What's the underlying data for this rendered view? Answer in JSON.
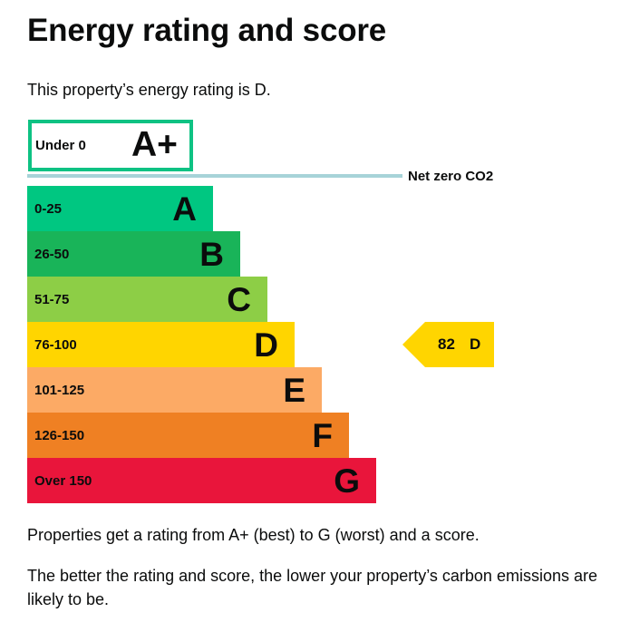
{
  "page": {
    "title": "Energy rating and score",
    "intro": "This property’s energy rating is D.",
    "note1": "Properties get a rating from A+ (best) to G (worst) and a score.",
    "note2": "The better the rating and score, the lower your property’s carbon emissions are likely to be."
  },
  "rating_chart": {
    "top_band": {
      "range": "Under 0",
      "letter": "A+",
      "border_color": "#0ec283"
    },
    "net_zero": {
      "label": "Net zero CO2",
      "line_color": "#a7d3d8"
    },
    "bands": [
      {
        "range": "0-25",
        "letter": "A",
        "color": "#00c781"
      },
      {
        "range": "26-50",
        "letter": "B",
        "color": "#19b459"
      },
      {
        "range": "51-75",
        "letter": "C",
        "color": "#8dce46"
      },
      {
        "range": "76-100",
        "letter": "D",
        "color": "#ffd500"
      },
      {
        "range": "101-125",
        "letter": "E",
        "color": "#fcaa65"
      },
      {
        "range": "126-150",
        "letter": "F",
        "color": "#ef8023"
      },
      {
        "range": "Over 150",
        "letter": "G",
        "color": "#e9153b"
      }
    ],
    "current": {
      "score": "82",
      "letter": "D",
      "color": "#ffd500"
    }
  }
}
